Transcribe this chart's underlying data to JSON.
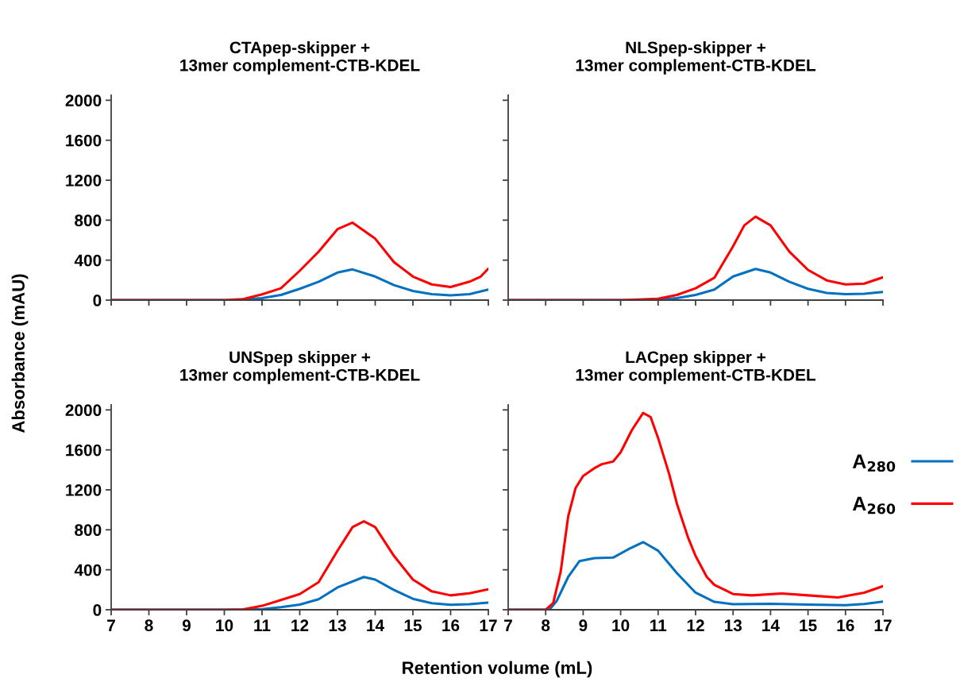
{
  "chart_data": [
    {
      "type": "line",
      "title": "CTApep-skipper +\n13mer complement-CTB-KDEL",
      "ylabel": "Absorbance (mAU)",
      "xlim": [
        7,
        17
      ],
      "ylim": [
        0,
        2050
      ],
      "xticks": [
        7,
        8,
        9,
        10,
        11,
        12,
        13,
        14,
        15,
        16,
        17
      ],
      "yticks": [
        0,
        400,
        800,
        1200,
        1600,
        2000
      ],
      "tick_labels": "y",
      "grid": false,
      "legend": false,
      "series": [
        {
          "color": "#0070c0",
          "x": [
            7,
            10.3,
            11,
            11.5,
            12,
            12.5,
            13,
            13.4,
            14,
            14.5,
            15,
            15.5,
            16,
            16.5,
            17
          ],
          "values": [
            0,
            0,
            20,
            52,
            113,
            184,
            276,
            307,
            236,
            150,
            92,
            60,
            47,
            60,
            105
          ]
        },
        {
          "color": "#ff0000",
          "x": [
            7,
            10,
            10.5,
            11,
            11.5,
            12,
            12.5,
            13,
            13.4,
            14,
            14.5,
            15,
            15.5,
            16,
            16.5,
            16.8,
            17
          ],
          "values": [
            0,
            0,
            10,
            58,
            118,
            294,
            485,
            710,
            775,
            615,
            380,
            236,
            157,
            131,
            184,
            236,
            315
          ]
        }
      ]
    },
    {
      "type": "line",
      "title": "NLSpep-skipper +\n13mer complement-CTB-KDEL",
      "xlim": [
        7,
        17
      ],
      "ylim": [
        0,
        2050
      ],
      "xticks": [
        7,
        8,
        9,
        10,
        11,
        12,
        13,
        14,
        15,
        16,
        17
      ],
      "yticks": [
        0,
        400,
        800,
        1200,
        1600,
        2000
      ],
      "tick_labels": false,
      "grid": false,
      "legend": false,
      "series": [
        {
          "color": "#0070c0",
          "x": [
            7,
            10.5,
            11,
            11.5,
            12,
            12.5,
            13,
            13.6,
            14,
            14.5,
            15,
            15.5,
            16,
            16.5,
            17
          ],
          "values": [
            0,
            0,
            3,
            20,
            52,
            105,
            236,
            312,
            276,
            184,
            113,
            71,
            60,
            63,
            81
          ]
        },
        {
          "color": "#ff0000",
          "x": [
            7,
            10,
            10.5,
            11,
            11.5,
            12,
            12.5,
            13,
            13.3,
            13.6,
            14,
            14.5,
            15,
            15.5,
            16,
            16.5,
            17
          ],
          "values": [
            0,
            0,
            5,
            13,
            52,
            118,
            223,
            538,
            748,
            835,
            748,
            485,
            302,
            197,
            157,
            165,
            228
          ]
        }
      ]
    },
    {
      "type": "line",
      "title": "UNSpep skipper +\n13mer complement-CTB-KDEL",
      "xlabel": "Retention volume (mL)",
      "xlim": [
        7,
        17
      ],
      "ylim": [
        0,
        2050
      ],
      "xticks": [
        7,
        8,
        9,
        10,
        11,
        12,
        13,
        14,
        15,
        16,
        17
      ],
      "yticks": [
        0,
        400,
        800,
        1200,
        1600,
        2000
      ],
      "grid": false,
      "legend": false,
      "series": [
        {
          "color": "#0070c0",
          "x": [
            7,
            10.5,
            11,
            11.5,
            12,
            12.5,
            13,
            13.7,
            14,
            14.5,
            15,
            15.5,
            16,
            16.5,
            17
          ],
          "values": [
            0,
            0,
            5,
            26,
            52,
            105,
            223,
            328,
            302,
            197,
            110,
            66,
            50,
            55,
            71
          ]
        },
        {
          "color": "#ff0000",
          "x": [
            7,
            10,
            10.5,
            11,
            11.5,
            12,
            12.5,
            13,
            13.4,
            13.7,
            14,
            14.5,
            15,
            15.5,
            16,
            16.5,
            17
          ],
          "values": [
            0,
            0,
            3,
            39,
            97,
            157,
            276,
            590,
            827,
            885,
            827,
            538,
            302,
            184,
            144,
            165,
            205
          ]
        }
      ]
    },
    {
      "type": "line",
      "title": "LACpep skipper +\n13mer complement-CTB-KDEL",
      "xlim": [
        7,
        17
      ],
      "ylim": [
        0,
        2050
      ],
      "xticks": [
        7,
        8,
        9,
        10,
        11,
        12,
        13,
        14,
        15,
        16,
        17
      ],
      "yticks": [
        0,
        400,
        800,
        1200,
        1600,
        2000
      ],
      "tick_labels": "x",
      "grid": false,
      "legend": "right",
      "series": [
        {
          "name": "A$_{280}$",
          "color": "#0070c0",
          "x": [
            7,
            8.1,
            8.3,
            8.6,
            8.9,
            9.3,
            9.8,
            10.2,
            10.6,
            11,
            11.5,
            12,
            12.5,
            13,
            14,
            15,
            16,
            16.5,
            17
          ],
          "values": [
            0,
            0,
            92,
            328,
            486,
            517,
            522,
            604,
            677,
            591,
            367,
            171,
            79,
            55,
            60,
            52,
            45,
            58,
            81
          ]
        },
        {
          "name": "A$_{260}$",
          "color": "#ff0000",
          "x": [
            7,
            8,
            8.2,
            8.4,
            8.6,
            8.8,
            9,
            9.3,
            9.5,
            9.8,
            10,
            10.3,
            10.6,
            10.8,
            11,
            11.3,
            11.5,
            11.8,
            12,
            12.3,
            12.5,
            13,
            13.5,
            14.3,
            15,
            15.8,
            16.5,
            17
          ],
          "values": [
            0,
            0,
            66,
            380,
            932,
            1220,
            1339,
            1417,
            1457,
            1483,
            1575,
            1798,
            1969,
            1929,
            1719,
            1352,
            1063,
            722,
            538,
            328,
            249,
            157,
            144,
            163,
            144,
            123,
            171,
            236
          ]
        }
      ]
    }
  ]
}
